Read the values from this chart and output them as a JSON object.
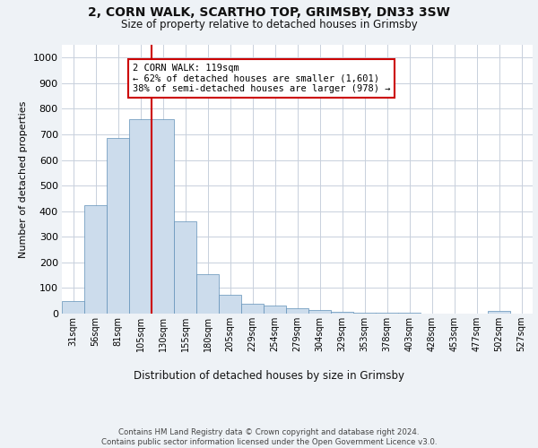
{
  "title": "2, CORN WALK, SCARTHO TOP, GRIMSBY, DN33 3SW",
  "subtitle": "Size of property relative to detached houses in Grimsby",
  "xlabel": "Distribution of detached houses by size in Grimsby",
  "ylabel": "Number of detached properties",
  "bar_values": [
    50,
    425,
    685,
    760,
    760,
    360,
    155,
    75,
    40,
    30,
    20,
    15,
    8,
    5,
    3,
    2,
    1,
    0,
    0,
    10,
    0
  ],
  "bin_labels": [
    "31sqm",
    "56sqm",
    "81sqm",
    "105sqm",
    "130sqm",
    "155sqm",
    "180sqm",
    "205sqm",
    "229sqm",
    "254sqm",
    "279sqm",
    "304sqm",
    "329sqm",
    "353sqm",
    "378sqm",
    "403sqm",
    "428sqm",
    "453sqm",
    "477sqm",
    "502sqm",
    "527sqm"
  ],
  "bar_color": "#ccdcec",
  "bar_edge_color": "#6090b8",
  "vline_color": "#cc0000",
  "annotation_text": "2 CORN WALK: 119sqm\n← 62% of detached houses are smaller (1,601)\n38% of semi-detached houses are larger (978) →",
  "annotation_box_color": "#ffffff",
  "annotation_box_edge": "#cc0000",
  "ylim": [
    0,
    1050
  ],
  "yticks": [
    0,
    100,
    200,
    300,
    400,
    500,
    600,
    700,
    800,
    900,
    1000
  ],
  "footer": "Contains HM Land Registry data © Crown copyright and database right 2024.\nContains public sector information licensed under the Open Government Licence v3.0.",
  "background_color": "#eef2f6",
  "plot_bg_color": "#ffffff",
  "grid_color": "#c8d0dc"
}
